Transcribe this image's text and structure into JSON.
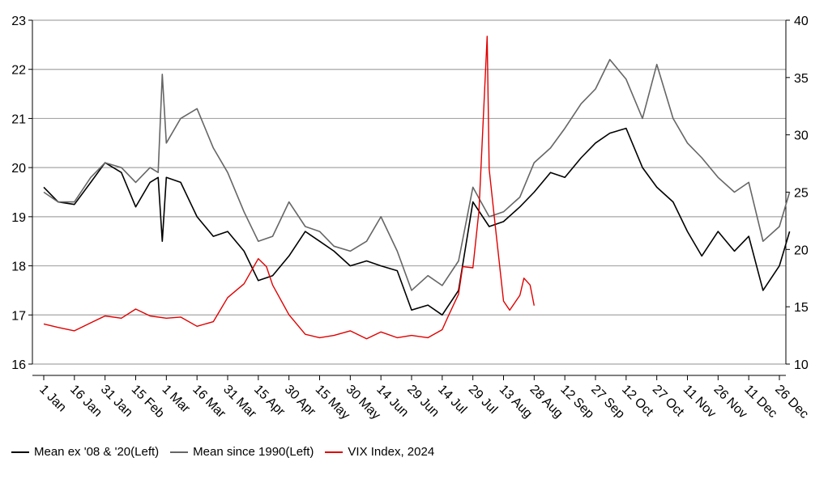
{
  "chart_data": {
    "type": "line",
    "x_ticks": [
      "1 Jan",
      "16 Jan",
      "31 Jan",
      "15 Feb",
      "1 Mar",
      "16 Mar",
      "31 Mar",
      "15 Apr",
      "30 Apr",
      "15 May",
      "30 May",
      "14 Jun",
      "29 Jun",
      "14 Jul",
      "29 Jul",
      "13 Aug",
      "28 Aug",
      "12 Sep",
      "27 Sep",
      "12 Oct",
      "27 Oct",
      "11 Nov",
      "26 Nov",
      "11 Dec",
      "26 Dec"
    ],
    "y_left": {
      "ticks": [
        16,
        17,
        18,
        19,
        20,
        21,
        22,
        23
      ],
      "range": [
        16,
        23
      ]
    },
    "y_right": {
      "ticks": [
        10,
        15,
        20,
        25,
        30,
        35,
        40
      ],
      "range": [
        10,
        40
      ]
    },
    "grid": true,
    "legend_position": "bottom",
    "series": [
      {
        "name": "Mean ex '08 & '20(Left)",
        "color": "#000000",
        "axis": "left",
        "x": [
          "1 Jan",
          "8 Jan",
          "16 Jan",
          "24 Jan",
          "31 Jan",
          "8 Feb",
          "15 Feb",
          "22 Feb",
          "26 Feb",
          "28 Feb",
          "1 Mar",
          "8 Mar",
          "16 Mar",
          "24 Mar",
          "31 Mar",
          "8 Apr",
          "15 Apr",
          "22 Apr",
          "30 Apr",
          "8 May",
          "15 May",
          "22 May",
          "30 May",
          "7 Jun",
          "14 Jun",
          "22 Jun",
          "29 Jun",
          "7 Jul",
          "14 Jul",
          "22 Jul",
          "29 Jul",
          "6 Aug",
          "13 Aug",
          "21 Aug",
          "28 Aug",
          "5 Sep",
          "12 Sep",
          "20 Sep",
          "27 Sep",
          "4 Oct",
          "12 Oct",
          "20 Oct",
          "27 Oct",
          "4 Nov",
          "11 Nov",
          "18 Nov",
          "26 Nov",
          "4 Dec",
          "11 Dec",
          "18 Dec",
          "26 Dec",
          "31 Dec"
        ],
        "values": [
          19.6,
          19.3,
          19.25,
          19.7,
          20.1,
          19.9,
          19.2,
          19.7,
          19.8,
          18.5,
          19.8,
          19.7,
          19.0,
          18.6,
          18.7,
          18.3,
          17.7,
          17.8,
          18.2,
          18.7,
          18.5,
          18.3,
          18.0,
          18.1,
          18.0,
          17.9,
          17.1,
          17.2,
          17.0,
          17.5,
          19.3,
          18.8,
          18.9,
          19.2,
          19.5,
          19.9,
          19.8,
          20.2,
          20.5,
          20.7,
          20.8,
          20.0,
          19.6,
          19.3,
          18.7,
          18.2,
          18.7,
          18.3,
          18.6,
          17.5,
          18.0,
          18.7
        ]
      },
      {
        "name": "Mean since 1990(Left)",
        "color": "#666666",
        "axis": "left",
        "x": [
          "1 Jan",
          "8 Jan",
          "16 Jan",
          "24 Jan",
          "31 Jan",
          "8 Feb",
          "15 Feb",
          "22 Feb",
          "26 Feb",
          "28 Feb",
          "1 Mar",
          "8 Mar",
          "16 Mar",
          "24 Mar",
          "31 Mar",
          "8 Apr",
          "15 Apr",
          "22 Apr",
          "30 Apr",
          "8 May",
          "15 May",
          "22 May",
          "30 May",
          "7 Jun",
          "14 Jun",
          "22 Jun",
          "29 Jun",
          "7 Jul",
          "14 Jul",
          "22 Jul",
          "29 Jul",
          "6 Aug",
          "13 Aug",
          "21 Aug",
          "28 Aug",
          "5 Sep",
          "12 Sep",
          "20 Sep",
          "27 Sep",
          "4 Oct",
          "12 Oct",
          "20 Oct",
          "27 Oct",
          "4 Nov",
          "11 Nov",
          "18 Nov",
          "26 Nov",
          "4 Dec",
          "11 Dec",
          "18 Dec",
          "26 Dec",
          "31 Dec"
        ],
        "values": [
          19.5,
          19.3,
          19.3,
          19.8,
          20.1,
          20.0,
          19.7,
          20.0,
          19.9,
          21.9,
          20.5,
          21.0,
          21.2,
          20.4,
          19.9,
          19.1,
          18.5,
          18.6,
          19.3,
          18.8,
          18.7,
          18.4,
          18.3,
          18.5,
          19.0,
          18.3,
          17.5,
          17.8,
          17.6,
          18.1,
          19.6,
          19.0,
          19.1,
          19.4,
          20.1,
          20.4,
          20.8,
          21.3,
          21.6,
          22.2,
          21.8,
          21.0,
          22.1,
          21.0,
          20.5,
          20.2,
          19.8,
          19.5,
          19.7,
          18.5,
          18.8,
          19.5
        ]
      },
      {
        "name": "VIX Index, 2024",
        "color": "#e00000",
        "axis": "right",
        "x": [
          "1 Jan",
          "8 Jan",
          "16 Jan",
          "24 Jan",
          "31 Jan",
          "8 Feb",
          "15 Feb",
          "22 Feb",
          "1 Mar",
          "8 Mar",
          "16 Mar",
          "24 Mar",
          "31 Mar",
          "8 Apr",
          "15 Apr",
          "19 Apr",
          "22 Apr",
          "30 Apr",
          "8 May",
          "15 May",
          "22 May",
          "30 May",
          "7 Jun",
          "14 Jun",
          "22 Jun",
          "29 Jun",
          "7 Jul",
          "14 Jul",
          "17 Jul",
          "22 Jul",
          "24 Jul",
          "29 Jul",
          "1 Aug",
          "5 Aug",
          "6 Aug",
          "9 Aug",
          "13 Aug",
          "16 Aug",
          "21 Aug",
          "23 Aug",
          "26 Aug",
          "28 Aug"
        ],
        "values": [
          13.5,
          13.2,
          12.9,
          13.6,
          14.2,
          14.0,
          14.8,
          14.2,
          14.0,
          14.1,
          13.3,
          13.7,
          15.8,
          17.0,
          19.2,
          18.5,
          16.9,
          14.3,
          12.6,
          12.3,
          12.5,
          12.9,
          12.2,
          12.8,
          12.3,
          12.5,
          12.3,
          13.0,
          14.2,
          16.1,
          18.5,
          18.4,
          23.4,
          38.6,
          27.0,
          22.0,
          15.5,
          14.7,
          16.0,
          17.5,
          16.9,
          15.1
        ]
      }
    ]
  },
  "legend": [
    {
      "label": "Mean ex '08 & '20(Left)",
      "color": "#000000"
    },
    {
      "label": "Mean since 1990(Left)",
      "color": "#666666"
    },
    {
      "label": "VIX Index, 2024",
      "color": "#e00000"
    }
  ]
}
